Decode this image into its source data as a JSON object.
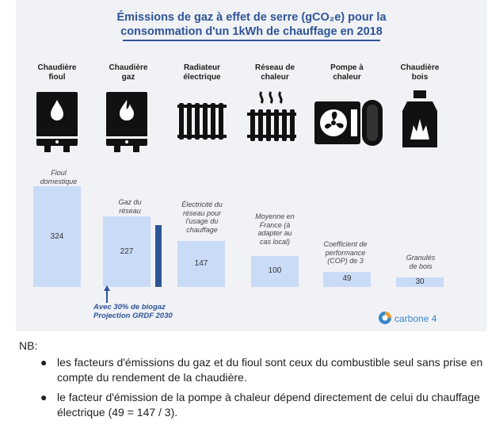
{
  "chart_data": {
    "type": "bar",
    "title": "Émissions de gaz à effet de serre (gCO₂e) pour la consommation d'un 1kWh de chauffage en 2018",
    "title_line1": "Émissions de gaz à effet de serre (gCO₂e) pour la",
    "title_line2": "consommation d'un 1kWh de chauffage en 2018",
    "categories": [
      "Chaudière fioul",
      "Chaudière gaz",
      "Radiateur électrique",
      "Réseau de chaleur",
      "Pompe à chaleur",
      "Chaudière bois"
    ],
    "category_lines": [
      [
        "Chaudière",
        "fioul"
      ],
      [
        "Chaudière",
        "gaz"
      ],
      [
        "Radiateur",
        "électrique"
      ],
      [
        "Réseau de",
        "chaleur"
      ],
      [
        "Pompe à",
        "chaleur"
      ],
      [
        "Chaudière",
        "bois"
      ]
    ],
    "icons": [
      "oil-boiler-icon",
      "gas-boiler-icon",
      "radiator-icon",
      "heating-network-icon",
      "heat-pump-icon",
      "wood-boiler-icon"
    ],
    "values": [
      324,
      227,
      147,
      100,
      49,
      30
    ],
    "value_labels": [
      "324",
      "227",
      "147",
      "100",
      "49",
      "30"
    ],
    "annotations": [
      [
        "Fioul",
        "domestique"
      ],
      [
        "Gaz du",
        "réseau"
      ],
      [
        "Électricité du",
        "réseau pour",
        "l'usage du",
        "chauffage"
      ],
      [
        "Moyenne en",
        "France (à",
        "adapter au",
        "cas local)"
      ],
      [
        "Coefficient de",
        "performance",
        "(COP) de 3"
      ],
      [
        "Granulés",
        "de bois"
      ]
    ],
    "biogaz": {
      "value": 200,
      "label_line1": "Avec 30% de biogaz",
      "label_line2": "Projection GRDF 2030"
    },
    "ylim": [
      0,
      340
    ],
    "colors": {
      "bar": "#c9dbf7",
      "biogaz_bar": "#2f5496",
      "title": "#2f5496",
      "background": "#f1f2f6"
    },
    "logo_text": "carbone 4"
  },
  "notes": {
    "heading": "NB:",
    "items": [
      "les facteurs d'émissions du gaz et du fioul sont ceux du combustible seul sans prise en compte du rendement de la chaudière.",
      "le facteur d'émission de la pompe à chaleur dépend directement de celui du chauffage électrique (49 = 147 / 3)."
    ]
  }
}
